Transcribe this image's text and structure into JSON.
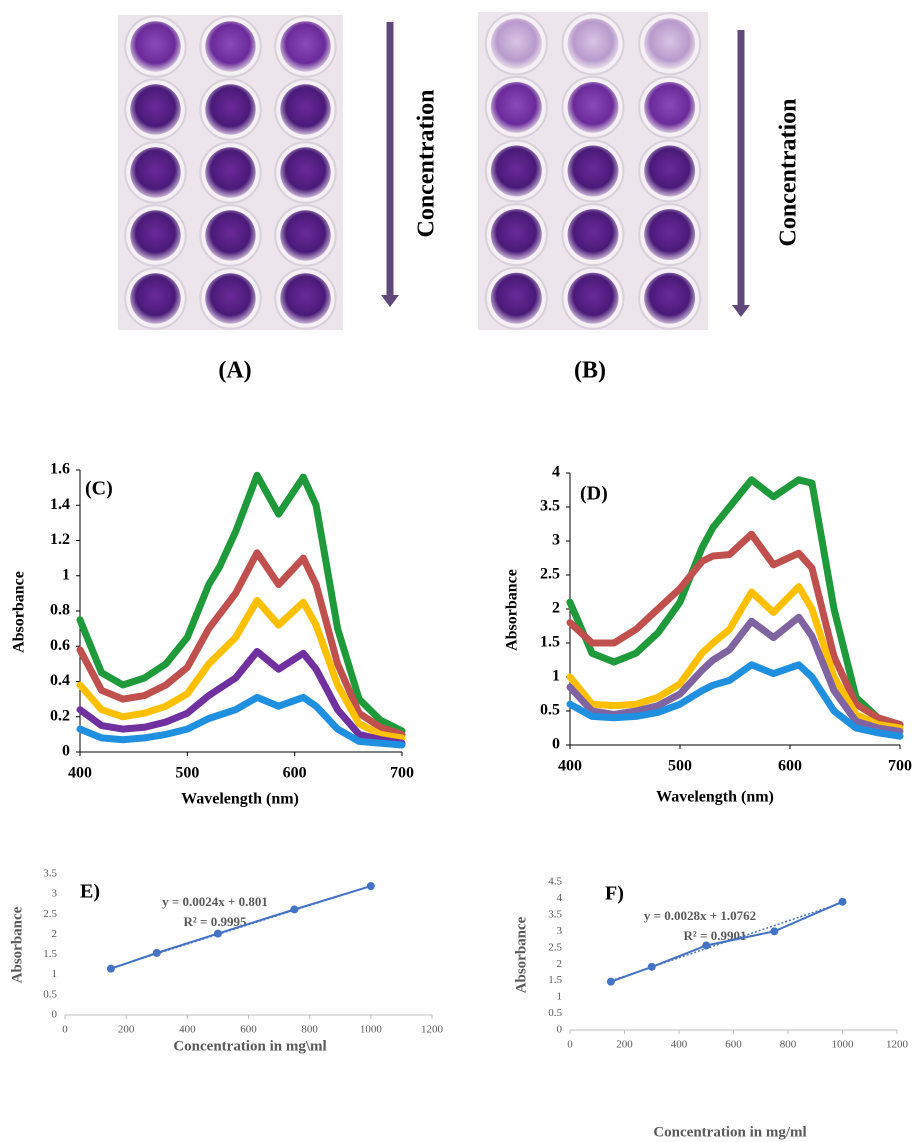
{
  "photos": [
    {
      "label": "(A)",
      "arrow_label": "Concentration"
    },
    {
      "label": "(B)",
      "arrow_label": "Concentration"
    }
  ],
  "chart_data": [
    {
      "type": "line",
      "panel_label": "(C)",
      "x_label": "Wavelength (nm)",
      "y_label": "Absorbance",
      "x": [
        400,
        420,
        440,
        460,
        480,
        500,
        520,
        530,
        545,
        565,
        585,
        608,
        620,
        640,
        660,
        680,
        700
      ],
      "series": [
        {
          "color": "#1e9a3a",
          "values": [
            0.75,
            0.45,
            0.38,
            0.42,
            0.5,
            0.65,
            0.95,
            1.05,
            1.25,
            1.57,
            1.35,
            1.56,
            1.4,
            0.7,
            0.3,
            0.18,
            0.12
          ]
        },
        {
          "color": "#c0504d",
          "values": [
            0.58,
            0.35,
            0.3,
            0.32,
            0.38,
            0.48,
            0.7,
            0.78,
            0.9,
            1.13,
            0.95,
            1.1,
            0.95,
            0.5,
            0.22,
            0.14,
            0.1
          ]
        },
        {
          "color": "#ffc000",
          "values": [
            0.38,
            0.24,
            0.2,
            0.22,
            0.26,
            0.33,
            0.5,
            0.56,
            0.65,
            0.86,
            0.72,
            0.85,
            0.72,
            0.38,
            0.16,
            0.1,
            0.08
          ]
        },
        {
          "color": "#7030a0",
          "values": [
            0.24,
            0.15,
            0.13,
            0.14,
            0.17,
            0.22,
            0.32,
            0.36,
            0.42,
            0.57,
            0.47,
            0.56,
            0.47,
            0.24,
            0.1,
            0.07,
            0.05
          ]
        },
        {
          "color": "#1f8fe0",
          "values": [
            0.13,
            0.08,
            0.07,
            0.08,
            0.1,
            0.13,
            0.19,
            0.21,
            0.24,
            0.31,
            0.26,
            0.31,
            0.26,
            0.13,
            0.06,
            0.05,
            0.04
          ]
        }
      ],
      "xlim": [
        400,
        700
      ],
      "xticks": [
        400,
        500,
        600,
        700
      ],
      "ylim": [
        0,
        1.6
      ],
      "yticks": [
        0,
        0.2,
        0.4,
        0.6,
        0.8,
        1,
        1.2,
        1.4,
        1.6
      ]
    },
    {
      "type": "line",
      "panel_label": "(D)",
      "x_label": "Wavelength (nm)",
      "y_label": "Absorbance",
      "x": [
        400,
        420,
        440,
        460,
        480,
        500,
        520,
        530,
        545,
        565,
        585,
        608,
        620,
        640,
        660,
        680,
        700
      ],
      "series": [
        {
          "color": "#1e9a3a",
          "values": [
            2.1,
            1.35,
            1.22,
            1.35,
            1.65,
            2.1,
            2.9,
            3.2,
            3.5,
            3.9,
            3.65,
            3.9,
            3.85,
            2.0,
            0.7,
            0.4,
            0.3
          ]
        },
        {
          "color": "#c0504d",
          "values": [
            1.8,
            1.5,
            1.5,
            1.7,
            2.0,
            2.3,
            2.7,
            2.78,
            2.8,
            3.1,
            2.65,
            2.82,
            2.6,
            1.3,
            0.6,
            0.4,
            0.3
          ]
        },
        {
          "color": "#ffc000",
          "values": [
            1.0,
            0.6,
            0.58,
            0.6,
            0.7,
            0.9,
            1.35,
            1.5,
            1.7,
            2.25,
            1.95,
            2.33,
            2.0,
            1.0,
            0.45,
            0.3,
            0.25
          ]
        },
        {
          "color": "#8064a2",
          "values": [
            0.85,
            0.5,
            0.45,
            0.5,
            0.58,
            0.75,
            1.1,
            1.25,
            1.4,
            1.82,
            1.58,
            1.88,
            1.6,
            0.8,
            0.35,
            0.25,
            0.2
          ]
        },
        {
          "color": "#1f8fe0",
          "values": [
            0.6,
            0.42,
            0.4,
            0.42,
            0.48,
            0.6,
            0.8,
            0.88,
            0.95,
            1.18,
            1.05,
            1.18,
            1.0,
            0.5,
            0.25,
            0.18,
            0.13
          ]
        }
      ],
      "xlim": [
        400,
        700
      ],
      "xticks": [
        400,
        500,
        600,
        700
      ],
      "ylim": [
        0,
        4
      ],
      "yticks": [
        0,
        0.5,
        1,
        1.5,
        2,
        2.5,
        3,
        3.5,
        4
      ]
    },
    {
      "type": "scatter",
      "panel_label": "E)",
      "x_label": "Concentration  in mg\\ml",
      "y_label": "Absorbance",
      "x": [
        150,
        300,
        500,
        750,
        1000
      ],
      "series": [
        {
          "color": "#4472c4",
          "values": [
            1.15,
            1.54,
            2.02,
            2.62,
            3.2
          ]
        }
      ],
      "trendline": {
        "label": "y = 0.0024x + 0.801",
        "r2_label": "R² = 0.9995",
        "slope": 0.0024,
        "intercept": 0.801
      },
      "xlim": [
        0,
        1200
      ],
      "xticks": [
        0,
        200,
        400,
        600,
        800,
        1000,
        1200
      ],
      "ylim": [
        0,
        3.5
      ],
      "yticks": [
        0,
        0.5,
        1,
        1.5,
        2,
        2.5,
        3,
        3.5
      ]
    },
    {
      "type": "scatter",
      "panel_label": "F)",
      "x_label": "Concentration  in mg/ml",
      "y_label": "Absorbance",
      "x": [
        150,
        300,
        500,
        750,
        1000
      ],
      "series": [
        {
          "color": "#4472c4",
          "values": [
            1.47,
            1.92,
            2.57,
            3.0,
            3.9
          ]
        }
      ],
      "trendline": {
        "label": "y = 0.0028x + 1.0762",
        "r2_label": "R² = 0.9901",
        "slope": 0.0028,
        "intercept": 1.0762
      },
      "xlim": [
        0,
        1200
      ],
      "xticks": [
        0,
        200,
        400,
        600,
        800,
        1000,
        1200
      ],
      "ylim": [
        0,
        4.5
      ],
      "yticks": [
        0,
        0.5,
        1,
        1.5,
        2,
        2.5,
        3,
        3.5,
        4,
        4.5
      ]
    }
  ]
}
